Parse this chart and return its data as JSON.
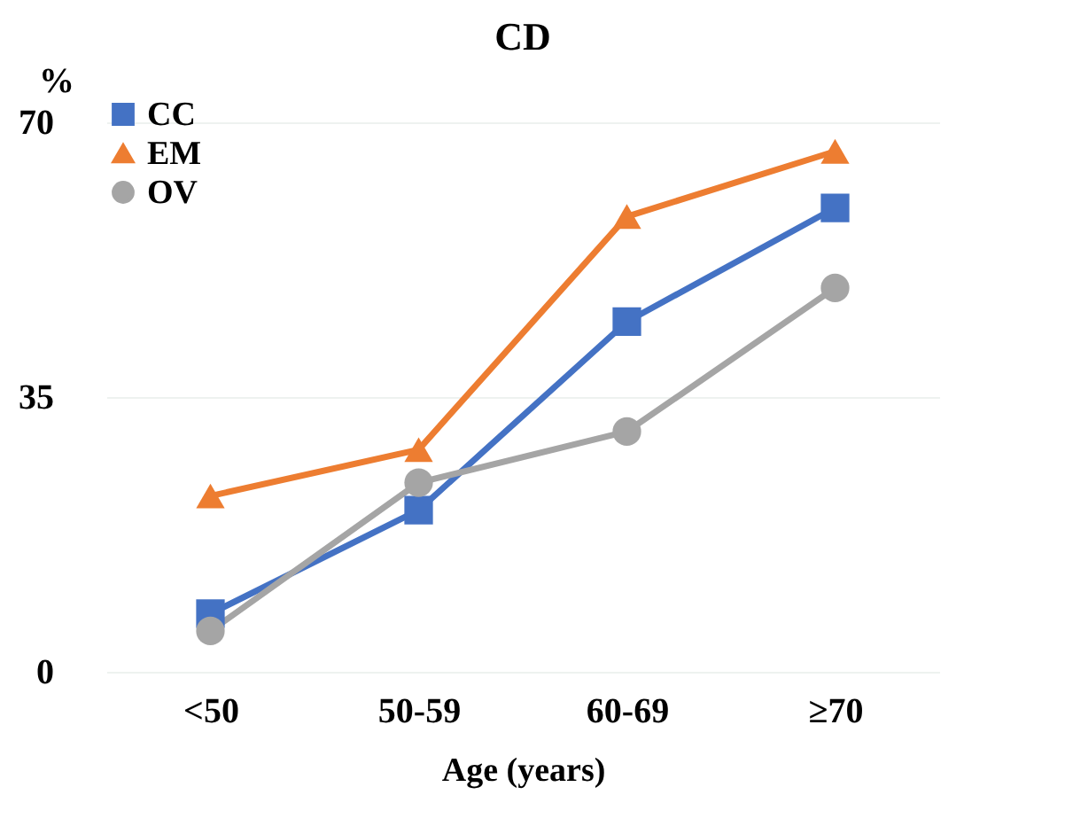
{
  "chart_data": {
    "type": "line",
    "title": "CD",
    "xlabel": "Age (years)",
    "ylabel": "%",
    "categories": [
      "<50",
      "50-59",
      "60-69",
      "≥70"
    ],
    "series": [
      {
        "name": "CC",
        "color": "#4472c4",
        "marker": "square",
        "values": [
          7.4,
          20.6,
          44.6,
          59.1
        ]
      },
      {
        "name": "EM",
        "color": "#ed7d31",
        "marker": "triangle",
        "values": [
          22.4,
          28.3,
          58,
          66.3
        ]
      },
      {
        "name": "OV",
        "color": "#a5a5a5",
        "marker": "circle",
        "values": [
          5.2,
          24.1,
          30.6,
          48.9
        ]
      }
    ],
    "ylim": [
      0,
      70
    ],
    "yticks": [
      0,
      35,
      70
    ],
    "grid": "y",
    "legend": "top left"
  }
}
